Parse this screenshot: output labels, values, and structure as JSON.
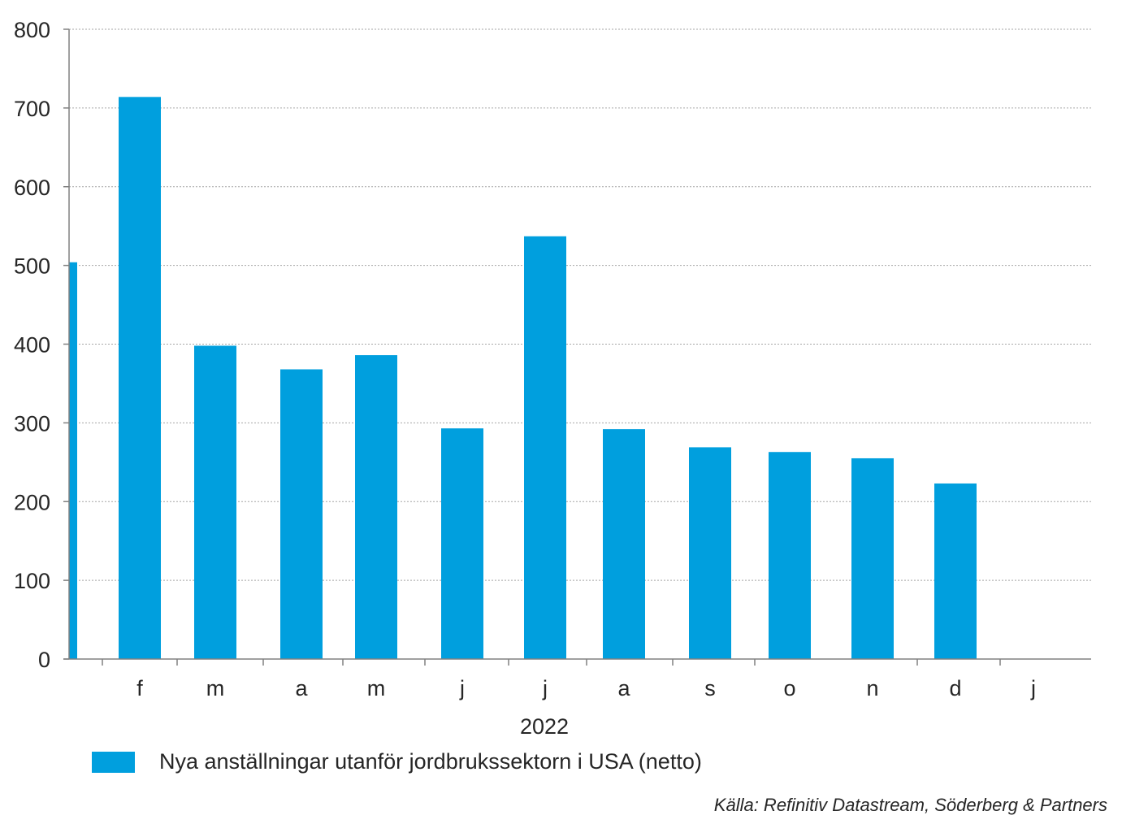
{
  "chart_data": {
    "type": "bar",
    "categories": [
      "",
      "f",
      "m",
      "a",
      "m",
      "j",
      "j",
      "a",
      "s",
      "o",
      "n",
      "d",
      "j"
    ],
    "series": [
      {
        "name": "Nya anställningar utanför jordbrukssektorn i USA (netto)",
        "values": [
          504,
          714,
          398,
          368,
          386,
          293,
          537,
          292,
          269,
          263,
          255,
          223,
          null
        ]
      }
    ],
    "group_label": "2022",
    "ylim": [
      0,
      800
    ],
    "yticks": [
      0,
      100,
      200,
      300,
      400,
      500,
      600,
      700,
      800
    ],
    "grid": true,
    "legend_position": "bottom-left",
    "source": "Källa: Refinitiv Datastream, Söderberg & Partners",
    "colors": {
      "bar": "#009FDE",
      "grid": "#A6A6A6",
      "axis": "#808080",
      "text": "#262626"
    }
  }
}
